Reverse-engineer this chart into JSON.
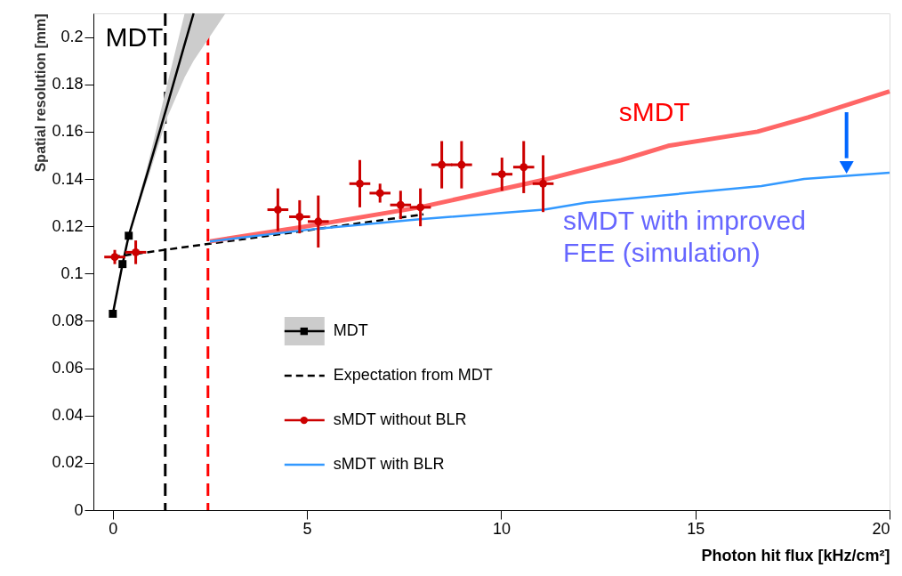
{
  "chart_data": {
    "type": "line",
    "xlabel": "Photon hit flux [kHz/cm²]",
    "ylabel": "Spatial resolution [mm]",
    "xlim": [
      -0.5,
      20
    ],
    "xticks": [
      0,
      5,
      10,
      15,
      20
    ],
    "ylim": [
      0,
      0.21
    ],
    "yticks": [
      0,
      0.02,
      0.04,
      0.06,
      0.08,
      0.1,
      0.12,
      0.14,
      0.16,
      0.18,
      0.2
    ],
    "grid": false,
    "legend": "bottom left",
    "series": [
      {
        "name": "MDT",
        "color": "#000000",
        "marker": "square",
        "x": [
          0,
          0.25,
          0.41
        ],
        "values": [
          0.083,
          0.104,
          0.116
        ]
      },
      {
        "color": "#000000",
        "marker": "none",
        "x": [
          0.41,
          0.9,
          1.4,
          1.85,
          2.08,
          2.9
        ],
        "values": [
          0.116,
          0.143,
          0.171,
          0.197,
          0.21,
          null
        ],
        "lower": [
          0.116,
          0.14,
          0.166,
          0.183,
          0.19,
          0.21
        ],
        "upper": [
          0.116,
          0.146,
          0.18,
          0.21,
          0.21,
          0.21
        ]
      },
      {
        "name": "Expectation from MDT",
        "color": "#000000",
        "marker": "none",
        "line_style": "dashed",
        "x": [
          0,
          8
        ],
        "values": [
          0.107,
          0.125
        ]
      },
      {
        "name": "sMDT without BLR",
        "type": "scatter",
        "color": "#cc0000",
        "marker": "circle",
        "x": [
          0.05,
          0.59,
          4.25,
          4.81,
          5.29,
          6.36,
          6.88,
          7.41,
          7.92,
          8.47,
          8.98,
          10.02,
          10.58,
          11.08
        ],
        "values": [
          0.107,
          0.109,
          0.127,
          0.124,
          0.122,
          0.138,
          0.134,
          0.129,
          0.128,
          0.146,
          0.146,
          0.142,
          0.145,
          0.138
        ],
        "errors": [
          0.003,
          0.005,
          0.009,
          0.007,
          0.011,
          0.01,
          0.004,
          0.006,
          0.008,
          0.01,
          0.01,
          0.007,
          0.011,
          0.012
        ],
        "xerrors": [
          0.27,
          0.27,
          0.27,
          0.27,
          0.27,
          0.27,
          0.27,
          0.27,
          0.27,
          0.27,
          0.27,
          0.27,
          0.27,
          0.27
        ]
      },
      {
        "color": "#ff6666",
        "marker": "none",
        "x": [
          2.5,
          5,
          7.9,
          11.1,
          13.1,
          14.3,
          16.6,
          17.9,
          20
        ],
        "values": [
          0.1136,
          0.12,
          0.128,
          0.1396,
          0.148,
          0.154,
          0.16,
          0.166,
          0.177
        ]
      },
      {
        "name": "sMDT with BLR",
        "color": "#3399ff",
        "marker": "none",
        "x": [
          2.5,
          5,
          7.9,
          11.1,
          12.2,
          16.7,
          17.8,
          20
        ],
        "values": [
          0.1136,
          0.1185,
          0.123,
          0.127,
          0.13,
          0.137,
          0.14,
          0.1426
        ]
      }
    ],
    "ref_lines": [
      {
        "axis": "x",
        "value": 1.35,
        "color": "#000000",
        "line_style": "dashed"
      },
      {
        "axis": "x",
        "value": 2.45,
        "color": "#ff0000",
        "line_style": "dashed"
      }
    ],
    "annotations": [
      "MDT",
      "sMDT",
      "sMDT with improved FEE (simulation)"
    ]
  }
}
